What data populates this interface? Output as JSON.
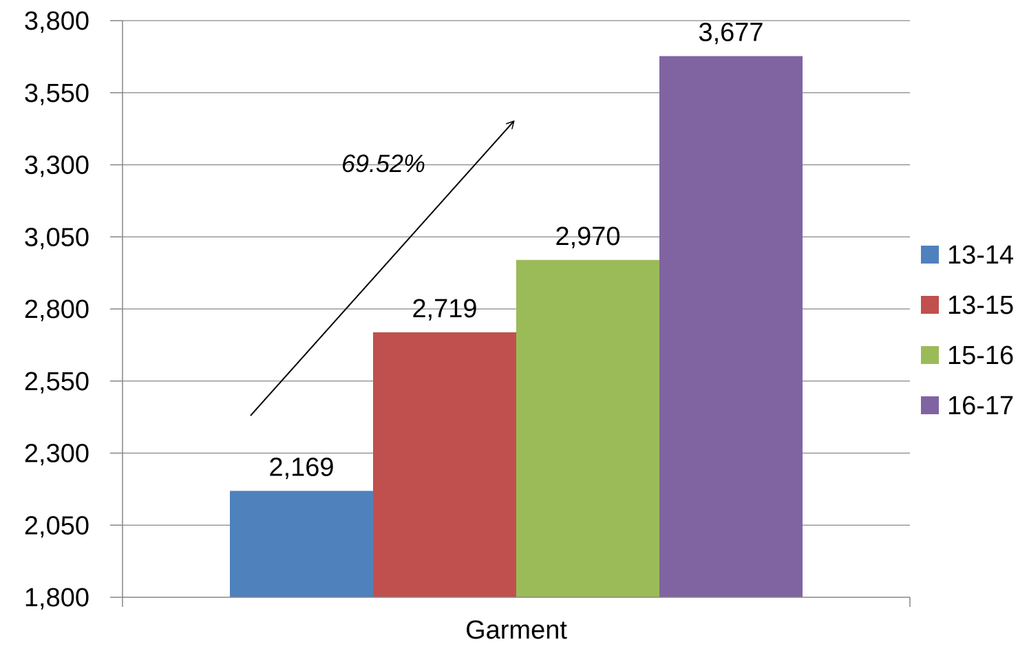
{
  "chart_data": {
    "type": "bar",
    "categories": [
      "Garment"
    ],
    "series": [
      {
        "name": "13-14",
        "values": [
          2169
        ],
        "color": "#4F81BD"
      },
      {
        "name": "13-15",
        "values": [
          2719
        ],
        "color": "#C0504D"
      },
      {
        "name": "15-16",
        "values": [
          2970
        ],
        "color": "#9BBB59"
      },
      {
        "name": "16-17",
        "values": [
          3677
        ],
        "color": "#8064A2"
      }
    ],
    "data_labels": [
      "2,169",
      "2,719",
      "2,970",
      "3,677"
    ],
    "title": "",
    "xlabel": "",
    "ylabel": "",
    "ylim": [
      1800,
      3800
    ],
    "yticks": [
      1800,
      2050,
      2300,
      2550,
      2800,
      3050,
      3300,
      3550,
      3800
    ],
    "ytick_labels": [
      "1,800",
      "2,050",
      "2,300",
      "2,550",
      "2,800",
      "3,050",
      "3,300",
      "3,550",
      "3,800"
    ],
    "grid": true,
    "legend_position": "right",
    "annotation": {
      "text": "69.52%",
      "arrow": {
        "from": [
          0,
          2430
        ],
        "to": [
          0,
          3450
        ]
      }
    }
  }
}
